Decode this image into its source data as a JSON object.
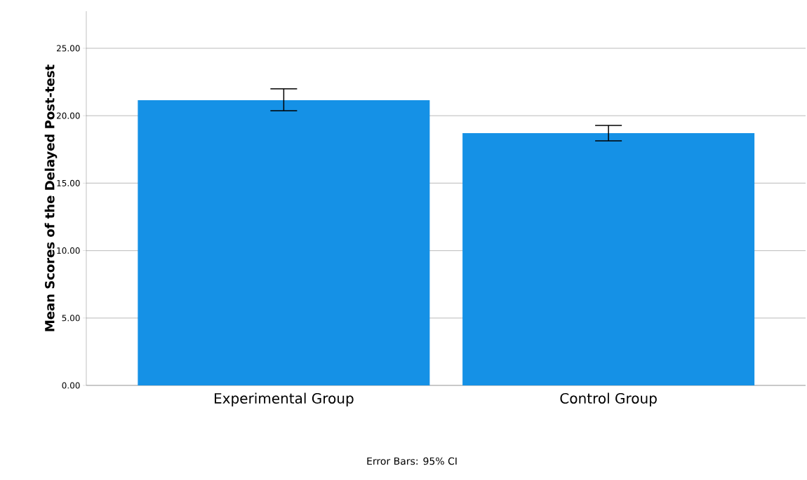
{
  "chart_data": {
    "type": "bar",
    "ylabel": "Mean Scores of the Delayed Post-test",
    "categories": [
      "Experimental Group",
      "Control Group"
    ],
    "values": [
      21.15,
      18.71
    ],
    "errors": [
      [
        20.37,
        22.0
      ],
      [
        18.14,
        19.28
      ]
    ],
    "color": "#1591e6",
    "ylim": [
      0,
      27.75
    ],
    "yticks": [
      {
        "value": 0,
        "label": "0.00"
      },
      {
        "value": 5,
        "label": "5.00"
      },
      {
        "value": 10,
        "label": "10.00"
      },
      {
        "value": 15,
        "label": "15.00"
      },
      {
        "value": 20,
        "label": "20.00"
      },
      {
        "value": 25,
        "label": "25.00"
      }
    ],
    "grid": "y",
    "annotations": [
      "Error Bars: 95% CI"
    ]
  }
}
